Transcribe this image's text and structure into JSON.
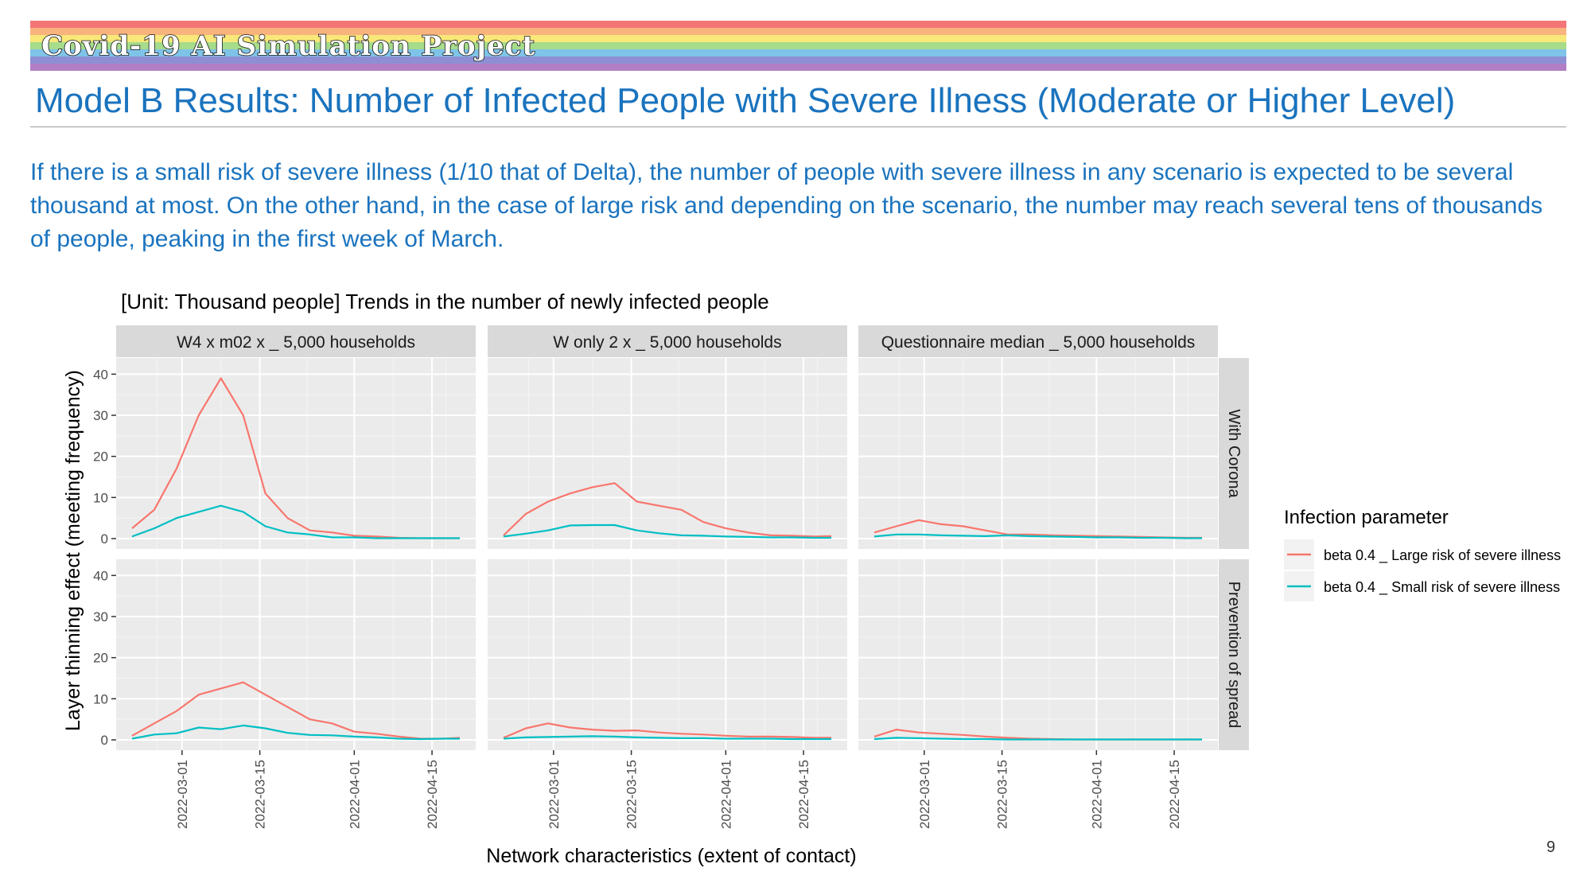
{
  "header": {
    "project_title": "Covid-19 AI Simulation Project",
    "rainbow_colors": [
      "#f47576",
      "#f9b37d",
      "#f8e879",
      "#a6dc8a",
      "#7fc3e8",
      "#8d8fd2",
      "#b27fc6"
    ]
  },
  "slide": {
    "title": "Model B Results: Number of Infected People with Severe Illness (Moderate or Higher Level)",
    "description": "If there is a small risk of severe illness (1/10 that of Delta), the number of people with severe illness in any scenario is expected to be several thousand at most. On the other hand, in the case of large risk and depending on the scenario, the number may reach several tens of thousands of people, peaking in the first week of March.",
    "page_number": "9"
  },
  "chart_data": {
    "type": "line",
    "title": "[Unit: Thousand people] Trends in the number of newly infected people",
    "xlabel": "Network characteristics (extent of contact)",
    "ylabel": "Layer thinning effect (meeting frequency)",
    "x_range": [
      "2022-02-20",
      "2022-04-20"
    ],
    "ylim": [
      0,
      42
    ],
    "y_ticks": [
      0,
      10,
      20,
      30,
      40
    ],
    "x_ticks": [
      "2022-03-01",
      "2022-03-15",
      "2022-04-01",
      "2022-04-15"
    ],
    "grid": true,
    "legend": {
      "title": "Infection parameter",
      "position": "right",
      "entries": [
        "beta 0.4 _ Large risk of severe illness",
        "beta 0.4 _ Small risk of severe illness"
      ]
    },
    "series_colors": [
      "#f8766d",
      "#00bfc4"
    ],
    "column_facets": [
      "W4 x m02 x _ 5,000 households",
      "W only 2 x _ 5,000 households",
      "Questionnaire median _ 5,000 households"
    ],
    "row_facets": [
      "With Corona",
      "Prevention of spread"
    ],
    "dates": [
      "2022-02-20",
      "2022-02-24",
      "2022-02-28",
      "2022-03-04",
      "2022-03-08",
      "2022-03-12",
      "2022-03-16",
      "2022-03-20",
      "2022-03-24",
      "2022-03-28",
      "2022-04-01",
      "2022-04-05",
      "2022-04-09",
      "2022-04-13",
      "2022-04-17",
      "2022-04-20"
    ],
    "panels": [
      {
        "row": "With Corona",
        "col": "W4 x m02 x _ 5,000 households",
        "series": [
          {
            "name": "beta 0.4 _ Large risk of severe illness",
            "values": [
              2.5,
              7,
              17,
              30,
              39,
              30,
              11,
              5,
              2,
              1.5,
              0.7,
              0.5,
              0.2,
              0.1,
              0.1,
              0.1
            ]
          },
          {
            "name": "beta 0.4 _ Small risk of severe illness",
            "values": [
              0.5,
              2.5,
              5,
              6.5,
              8,
              6.5,
              3,
              1.5,
              1,
              0.3,
              0.3,
              0.1,
              0.1,
              0.1,
              0.1,
              0.1
            ]
          }
        ]
      },
      {
        "row": "With Corona",
        "col": "W only 2 x _ 5,000 households",
        "series": [
          {
            "name": "beta 0.4 _ Large risk of severe illness",
            "values": [
              0.8,
              6,
              9,
              11,
              12.5,
              13.5,
              9,
              8,
              7,
              4,
              2.5,
              1.5,
              0.8,
              0.7,
              0.5,
              0.6
            ]
          },
          {
            "name": "beta 0.4 _ Small risk of severe illness",
            "values": [
              0.5,
              1.2,
              2,
              3.2,
              3.3,
              3.3,
              2,
              1.3,
              0.8,
              0.7,
              0.5,
              0.4,
              0.3,
              0.3,
              0.2,
              0.2
            ]
          }
        ]
      },
      {
        "row": "With Corona",
        "col": "Questionnaire median _ 5,000 households",
        "series": [
          {
            "name": "beta 0.4 _ Large risk of severe illness",
            "values": [
              1.5,
              3,
              4.5,
              3.5,
              3,
              2,
              1,
              1,
              0.8,
              0.7,
              0.6,
              0.5,
              0.4,
              0.3,
              0.2,
              0.2
            ]
          },
          {
            "name": "beta 0.4 _ Small risk of severe illness",
            "values": [
              0.5,
              1,
              1,
              0.8,
              0.7,
              0.6,
              0.8,
              0.6,
              0.5,
              0.4,
              0.3,
              0.3,
              0.2,
              0.2,
              0.1,
              0.1
            ]
          }
        ]
      },
      {
        "row": "Prevention of spread",
        "col": "W4 x m02 x _ 5,000 households",
        "series": [
          {
            "name": "beta 0.4 _ Large risk of severe illness",
            "values": [
              1,
              4,
              7,
              11,
              12.5,
              14,
              11,
              8,
              5,
              4,
              2,
              1.5,
              0.8,
              0.3,
              0.3,
              0.5
            ]
          },
          {
            "name": "beta 0.4 _ Small risk of severe illness",
            "values": [
              0.3,
              1.3,
              1.6,
              3,
              2.6,
              3.5,
              2.8,
              1.7,
              1.2,
              1.1,
              0.8,
              0.6,
              0.3,
              0.2,
              0.3,
              0.3
            ]
          }
        ]
      },
      {
        "row": "Prevention of spread",
        "col": "W only 2 x _ 5,000 households",
        "series": [
          {
            "name": "beta 0.4 _ Large risk of severe illness",
            "values": [
              0.5,
              2.8,
              4,
              3,
              2.5,
              2.2,
              2.3,
              1.8,
              1.5,
              1.3,
              1,
              0.8,
              0.8,
              0.7,
              0.5,
              0.5
            ]
          },
          {
            "name": "beta 0.4 _ Small risk of severe illness",
            "values": [
              0.3,
              0.6,
              0.7,
              0.8,
              0.9,
              0.8,
              0.6,
              0.5,
              0.4,
              0.4,
              0.3,
              0.3,
              0.3,
              0.2,
              0.2,
              0.2
            ]
          }
        ]
      },
      {
        "row": "Prevention of spread",
        "col": "Questionnaire median _ 5,000 households",
        "series": [
          {
            "name": "beta 0.4 _ Large risk of severe illness",
            "values": [
              0.8,
              2.5,
              1.8,
              1.5,
              1.2,
              0.8,
              0.5,
              0.3,
              0.2,
              0.1,
              0.1,
              0.1,
              0.1,
              0.1,
              0.1,
              0.1
            ]
          },
          {
            "name": "beta 0.4 _ Small risk of severe illness",
            "values": [
              0.2,
              0.5,
              0.4,
              0.3,
              0.2,
              0.2,
              0.1,
              0.1,
              0.1,
              0.1,
              0.1,
              0.1,
              0.1,
              0.1,
              0.1,
              0.1
            ]
          }
        ]
      }
    ]
  }
}
